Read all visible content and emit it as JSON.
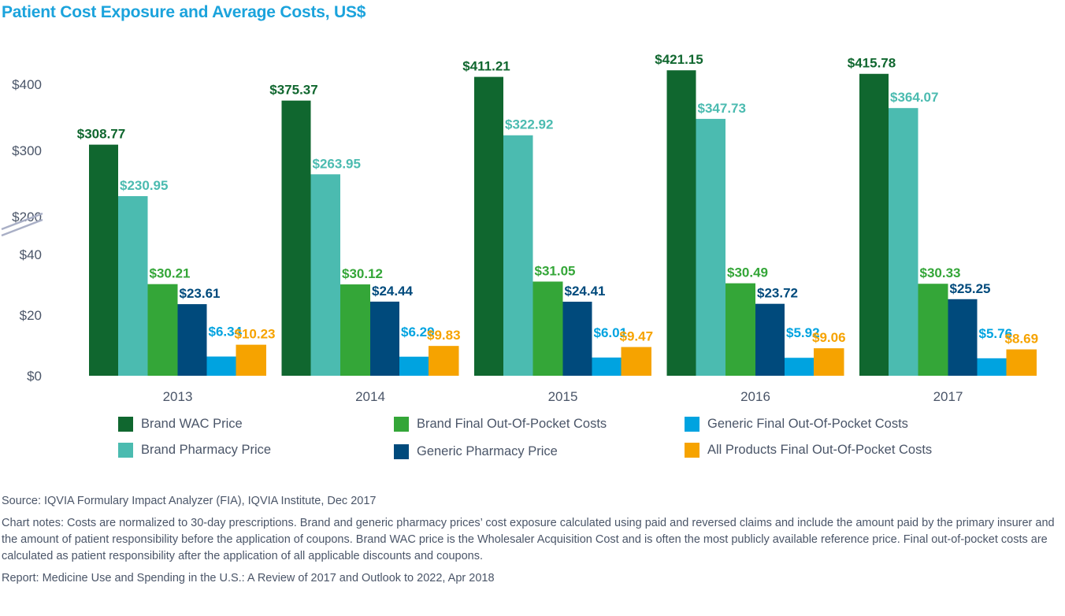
{
  "chart_data": {
    "type": "bar",
    "title": "Patient Cost Exposure and Average Costs, US$",
    "xlabel": "",
    "ylabel": "",
    "categories": [
      "2013",
      "2014",
      "2015",
      "2016",
      "2017"
    ],
    "series": [
      {
        "name": "Brand WAC Price",
        "color": "#10672f",
        "values": [
          308.77,
          375.37,
          411.21,
          421.15,
          415.78
        ],
        "labels": [
          "$308.77",
          "$375.37",
          "$411.21",
          "$421.15",
          "$415.78"
        ]
      },
      {
        "name": "Brand Pharmacy Price",
        "color": "#4bbbb0",
        "values": [
          230.95,
          263.95,
          322.92,
          347.73,
          364.07
        ],
        "labels": [
          "$230.95",
          "$263.95",
          "$322.92",
          "$347.73",
          "$364.07"
        ]
      },
      {
        "name": "Brand Final Out-Of-Pocket Costs",
        "color": "#34a638",
        "values": [
          30.21,
          30.12,
          31.05,
          30.49,
          30.33
        ],
        "labels": [
          "$30.21",
          "$30.12",
          "$31.05",
          "$30.49",
          "$30.33"
        ]
      },
      {
        "name": "Generic Pharmacy Price",
        "color": "#004a7c",
        "values": [
          23.61,
          24.44,
          24.41,
          23.72,
          25.25
        ],
        "labels": [
          "$23.61",
          "$24.44",
          "$24.41",
          "$23.72",
          "$25.25"
        ]
      },
      {
        "name": "Generic Final Out-Of-Pocket Costs",
        "color": "#00a3e0",
        "values": [
          6.34,
          6.29,
          6.01,
          5.92,
          5.76
        ],
        "labels": [
          "$6.34",
          "$6.29",
          "$6.01",
          "$5.92",
          "$5.76"
        ]
      },
      {
        "name": "All Products Final Out-Of-Pocket Costs",
        "color": "#f6a300",
        "values": [
          10.23,
          9.83,
          9.47,
          9.06,
          8.69
        ],
        "labels": [
          "$10.23",
          "$9.83",
          "$9.47",
          "$9.06",
          "$8.69"
        ]
      }
    ],
    "y_axis": {
      "broken": true,
      "lower_range": [
        0,
        40
      ],
      "upper_range": [
        200,
        400
      ],
      "ticks": [
        {
          "value": 0,
          "label": "$0"
        },
        {
          "value": 20,
          "label": "$20"
        },
        {
          "value": 40,
          "label": "$40"
        },
        {
          "value": 200,
          "label": "$200"
        },
        {
          "value": 300,
          "label": "$300"
        },
        {
          "value": 400,
          "label": "$400"
        }
      ]
    },
    "grid": false,
    "legend_position": "bottom"
  },
  "legend": [
    {
      "label": "Brand WAC Price",
      "color": "#10672f"
    },
    {
      "label": "Brand Pharmacy Price",
      "color": "#4bbbb0"
    },
    {
      "label": "Brand Final Out-Of-Pocket Costs",
      "color": "#34a638"
    },
    {
      "label": "Generic Pharmacy Price",
      "color": "#004a7c"
    },
    {
      "label": "Generic Final Out-Of-Pocket Costs",
      "color": "#00a3e0"
    },
    {
      "label": "All Products Final Out-Of-Pocket Costs",
      "color": "#f6a300"
    }
  ],
  "notes": {
    "source": "Source: IQVIA Formulary Impact Analyzer (FIA), IQVIA Institute, Dec 2017",
    "chart_notes": "Chart notes: Costs are normalized to 30-day prescriptions. Brand and generic pharmacy prices’ cost exposure calculated using paid and reversed claims and include the amount paid by the primary insurer and the amount of patient responsibility before the application of coupons. Brand WAC price is the Wholesaler Acquisition Cost and is often the most publicly available reference price. Final out-of-pocket costs are calculated as patient responsibility after the application of all applicable discounts and coupons.",
    "report": "Report: Medicine Use and Spending in the U.S.: A Review of 2017 and Outlook to 2022, Apr 2018"
  },
  "colors": {
    "title": "#1ba3dc",
    "axis_text": "#4a5568",
    "axis_break": "#a9afc6"
  }
}
